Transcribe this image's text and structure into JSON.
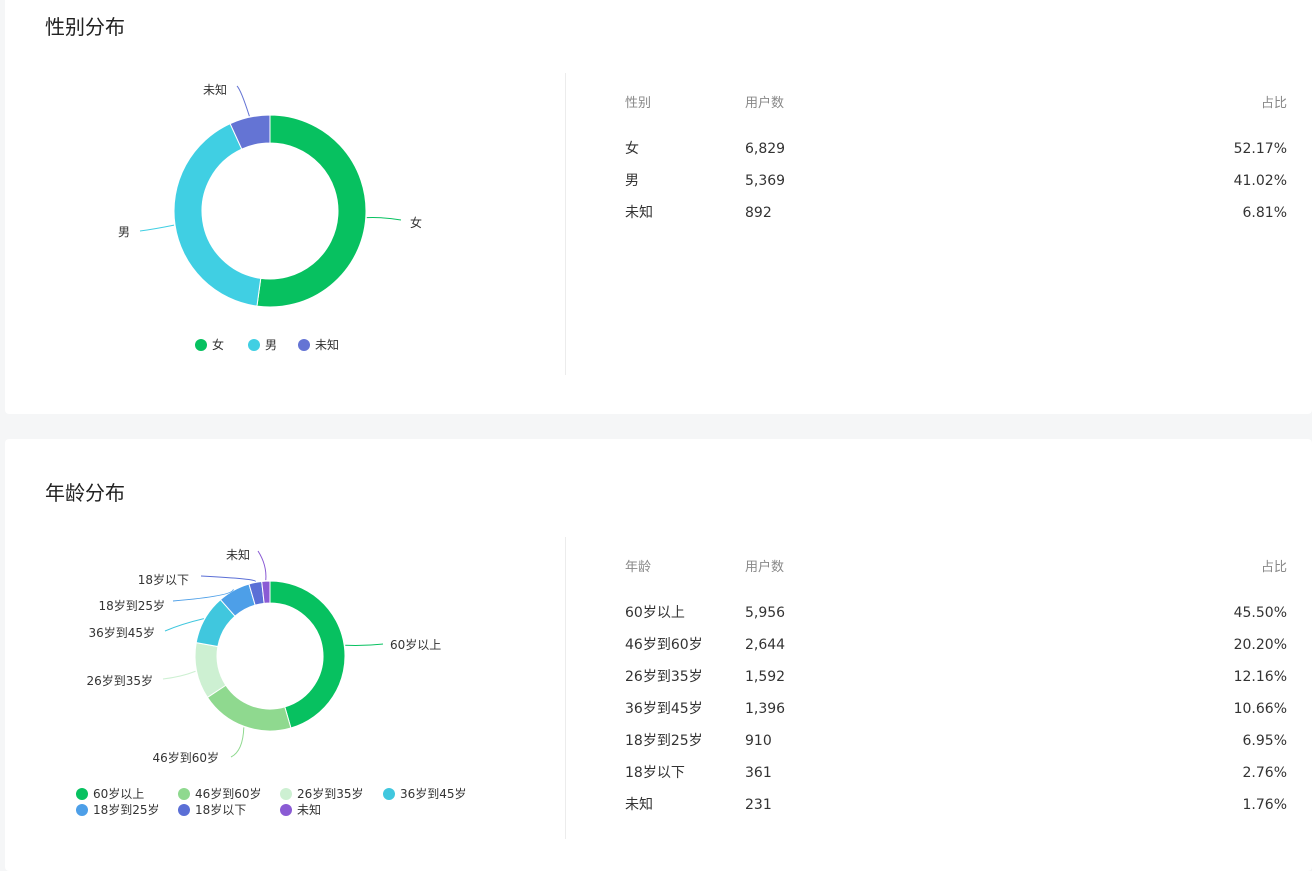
{
  "sections": {
    "gender": {
      "title": "性别分布",
      "table": {
        "headers": [
          "性别",
          "用户数",
          "占比"
        ],
        "rows": [
          [
            "女",
            "6,829",
            "52.17%"
          ],
          [
            "男",
            "5,369",
            "41.02%"
          ],
          [
            "未知",
            "892",
            "6.81%"
          ]
        ]
      }
    },
    "age": {
      "title": "年龄分布",
      "table": {
        "headers": [
          "年龄",
          "用户数",
          "占比"
        ],
        "rows": [
          [
            "60岁以上",
            "5,956",
            "45.50%"
          ],
          [
            "46岁到60岁",
            "2,644",
            "20.20%"
          ],
          [
            "26岁到35岁",
            "1,592",
            "12.16%"
          ],
          [
            "36岁到45岁",
            "1,396",
            "10.66%"
          ],
          [
            "18岁到25岁",
            "910",
            "6.95%"
          ],
          [
            "18岁以下",
            "361",
            "2.76%"
          ],
          [
            "未知",
            "231",
            "1.76%"
          ]
        ]
      }
    }
  },
  "chart_data": [
    {
      "type": "pie",
      "variant": "donut",
      "title": "",
      "categories": [
        "女",
        "男",
        "未知"
      ],
      "values": [
        6829,
        5369,
        892
      ],
      "colors": [
        "#07c160",
        "#40cfe3",
        "#6474d4"
      ],
      "legend_position": "bottom"
    },
    {
      "type": "pie",
      "variant": "donut",
      "title": "",
      "categories": [
        "60岁以上",
        "46岁到60岁",
        "26岁到35岁",
        "36岁到45岁",
        "18岁到25岁",
        "18岁以下",
        "未知"
      ],
      "values": [
        5956,
        2644,
        1592,
        1396,
        910,
        361,
        231
      ],
      "colors": [
        "#07c160",
        "#8fd98f",
        "#cdf0d2",
        "#40c7de",
        "#4d9fe8",
        "#5b6fd6",
        "#8a5bd4"
      ],
      "legend_position": "bottom"
    }
  ]
}
